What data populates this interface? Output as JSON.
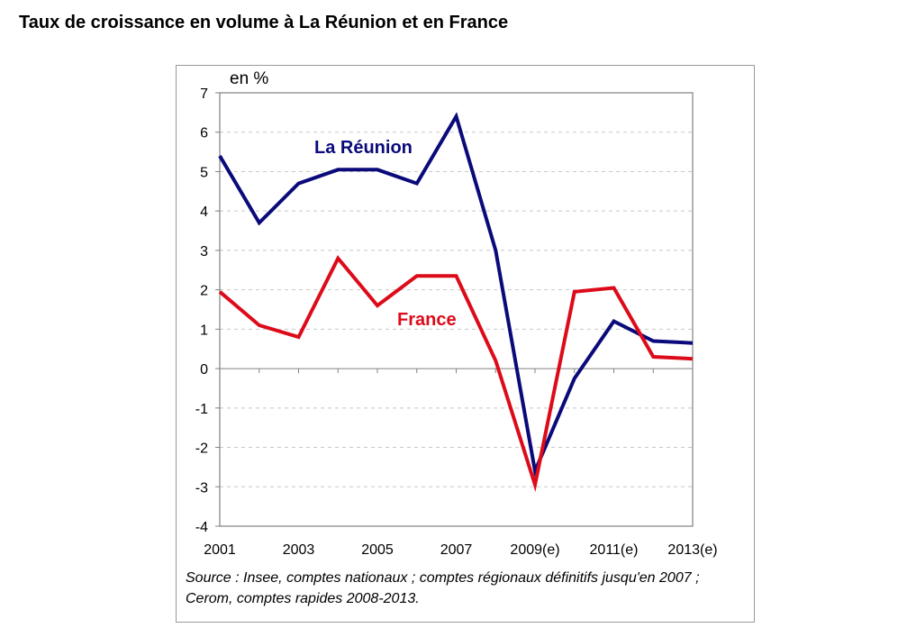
{
  "title": "Taux de croissance en volume à La Réunion et en France",
  "unit_label": "en %",
  "source_note": "Source : Insee, comptes nationaux ; comptes régionaux définitifs jusqu'en 2007 ; Cerom, comptes rapides 2008-2013.",
  "chart_data": {
    "type": "line",
    "title": "Taux de croissance en volume à La Réunion et en France",
    "ylabel": "en %",
    "xlabel": "",
    "ylim": [
      -4,
      7
    ],
    "yticks": [
      -4,
      -3,
      -2,
      -1,
      0,
      1,
      2,
      3,
      4,
      5,
      6,
      7
    ],
    "categories": [
      "2001",
      "2002",
      "2003",
      "2004",
      "2005",
      "2006",
      "2007",
      "2008",
      "2009(e)",
      "2010",
      "2011(e)",
      "2012",
      "2013(e)"
    ],
    "x_tick_labels": [
      "2001",
      "2003",
      "2005",
      "2007",
      "2009(e)",
      "2011(e)",
      "2013(e)"
    ],
    "x_tick_label_indices": [
      0,
      2,
      4,
      6,
      8,
      10,
      12
    ],
    "grid": true,
    "series": [
      {
        "name": "La Réunion",
        "color": "#0a0a7a",
        "values": [
          5.4,
          3.7,
          4.7,
          5.05,
          5.05,
          4.7,
          6.4,
          3.0,
          -2.6,
          -0.25,
          1.2,
          0.7,
          0.65
        ]
      },
      {
        "name": "France",
        "color": "#dd0b1a",
        "values": [
          1.95,
          1.1,
          0.8,
          2.8,
          1.6,
          2.35,
          2.35,
          0.2,
          -2.95,
          1.95,
          2.05,
          0.3,
          0.25
        ]
      }
    ]
  }
}
